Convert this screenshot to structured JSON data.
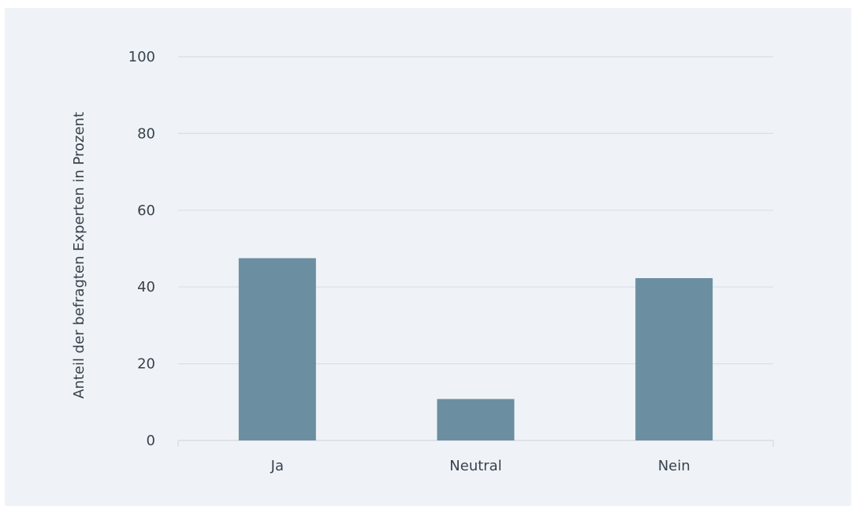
{
  "chart_data": {
    "type": "bar",
    "categories": [
      "Ja",
      "Neutral",
      "Nein"
    ],
    "values": [
      47.5,
      10.8,
      42.3
    ],
    "title": "",
    "xlabel": "",
    "ylabel": "Anteil der befragten Experten in Prozent",
    "ylim": [
      0,
      100
    ],
    "yticks": [
      0,
      20,
      40,
      60,
      80,
      100
    ],
    "grid": true,
    "bar_color": "#6b8fa1",
    "background_color": "#eff3f7"
  }
}
